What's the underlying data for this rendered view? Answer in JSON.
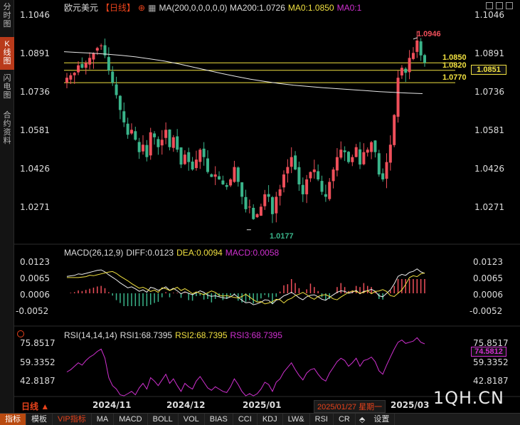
{
  "sidebar": {
    "tabs": [
      {
        "label": "分时图",
        "active": false
      },
      {
        "label": "K线图",
        "active": true
      },
      {
        "label": "闪电图",
        "active": false
      },
      {
        "label": "合约资料",
        "active": false
      }
    ]
  },
  "header": {
    "name": "欧元美元",
    "period": "【日线】",
    "add_icon": "plus-circle-icon",
    "ma200": "MA(200,0,0,0,0,0)  MA200:1.0726",
    "ma0a": "MA0:1.0850",
    "ma0b": "MA0:1"
  },
  "price_axis": [
    "1.1046",
    "1.0891",
    "1.0736",
    "1.0581",
    "1.0426",
    "1.0271"
  ],
  "markers": {
    "high": "1.0946",
    "low": "1.0177",
    "line1": "1.0850",
    "line2": "1.0820",
    "line3": "1.0770",
    "current": "1.0851"
  },
  "macd": {
    "title": "MACD(26,12,9)",
    "diff": "DIFF:0.0123",
    "dea": "DEA:0.0094",
    "macd": "MACD:0.0058",
    "axis": [
      "0.0123",
      "0.0065",
      "0.0006",
      "-0.0052"
    ]
  },
  "rsi": {
    "title": "RSI(14,14,14)",
    "rsi1": "RSI1:68.7395",
    "rsi2": "RSI2:68.7395",
    "rsi3": "RSI3:68.7395",
    "axis_left": [
      "75.8517",
      "59.3352",
      "42.8187"
    ],
    "axis_right": [
      "75.8517",
      "74.5812",
      "59.3352",
      "42.8187"
    ]
  },
  "time_axis": [
    "2024/11",
    "2024/12",
    "2025/01",
    "2025/03"
  ],
  "cursor_date": "2025/01/27 星期一",
  "period_button": "日线",
  "bottom_bar": [
    "指标",
    "模板",
    "VIP指标",
    "MA",
    "MACD",
    "BOLL",
    "VOL",
    "BIAS",
    "CCI",
    "KDJ",
    "LW&",
    "RSI",
    "CR",
    "设置"
  ],
  "watermark": "1QH.CN",
  "colors": {
    "up": "#ef4f5a",
    "down": "#3ab48a",
    "ma200": "#e6e6e6",
    "yellow": "#f0e040",
    "magenta": "#d030d0",
    "accent": "#e8421b"
  },
  "chart_data": {
    "type": "candlestick",
    "ylim": [
      1.0177,
      1.0946
    ],
    "note_range": "daily EUR/USD",
    "candles_close": [
      1.079,
      1.08,
      1.081,
      1.084,
      1.083,
      1.085,
      1.087,
      1.089,
      1.091,
      1.092,
      1.088,
      1.082,
      1.077,
      1.072,
      1.066,
      1.061,
      1.056,
      1.058,
      1.054,
      1.049,
      1.052,
      1.047,
      1.057,
      1.055,
      1.051,
      1.054,
      1.058,
      1.051,
      1.055,
      1.05,
      1.044,
      1.048,
      1.045,
      1.042,
      1.046,
      1.05,
      1.047,
      1.041,
      1.039,
      1.04,
      1.038,
      1.036,
      1.035,
      1.038,
      1.043,
      1.037,
      1.031,
      1.026,
      1.027,
      1.022,
      1.024,
      1.027,
      1.032,
      1.031,
      1.024,
      1.031,
      1.034,
      1.04,
      1.043,
      1.047,
      1.042,
      1.036,
      1.032,
      1.038,
      1.041,
      1.042,
      1.038,
      1.033,
      1.031,
      1.037,
      1.042,
      1.047,
      1.05,
      1.049,
      1.045,
      1.047,
      1.051,
      1.044,
      1.049,
      1.05,
      1.053,
      1.049,
      1.04,
      1.038,
      1.045,
      1.052,
      1.064,
      1.079,
      1.083,
      1.081,
      1.087,
      1.089,
      1.094,
      1.088,
      1.085
    ],
    "ma200": [
      1.0895,
      1.0892,
      1.0889,
      1.0885,
      1.088,
      1.0874,
      1.0866,
      1.0857,
      1.0846,
      1.0833,
      1.082,
      1.0807,
      1.0795,
      1.0784,
      1.0775,
      1.0767,
      1.076,
      1.0755,
      1.075,
      1.0746,
      1.0742,
      1.0738,
      1.0734,
      1.0731,
      1.0728,
      1.0726
    ],
    "rsi": [
      50,
      52,
      55,
      58,
      56,
      60,
      63,
      65,
      68,
      70,
      62,
      45,
      38,
      35,
      30,
      28,
      31,
      33,
      30,
      36,
      40,
      35,
      45,
      42,
      38,
      43,
      48,
      40,
      44,
      38,
      33,
      40,
      37,
      35,
      42,
      46,
      41,
      36,
      34,
      37,
      35,
      33,
      32,
      37,
      44,
      39,
      33,
      29,
      31,
      28,
      31,
      35,
      41,
      39,
      33,
      41,
      44,
      50,
      54,
      58,
      52,
      47,
      43,
      49,
      52,
      53,
      48,
      44,
      42,
      49,
      54,
      59,
      62,
      60,
      55,
      58,
      62,
      55,
      60,
      61,
      63,
      59,
      51,
      48,
      56,
      63,
      70,
      76,
      78,
      75,
      76,
      77,
      80,
      76,
      74.58
    ]
  }
}
